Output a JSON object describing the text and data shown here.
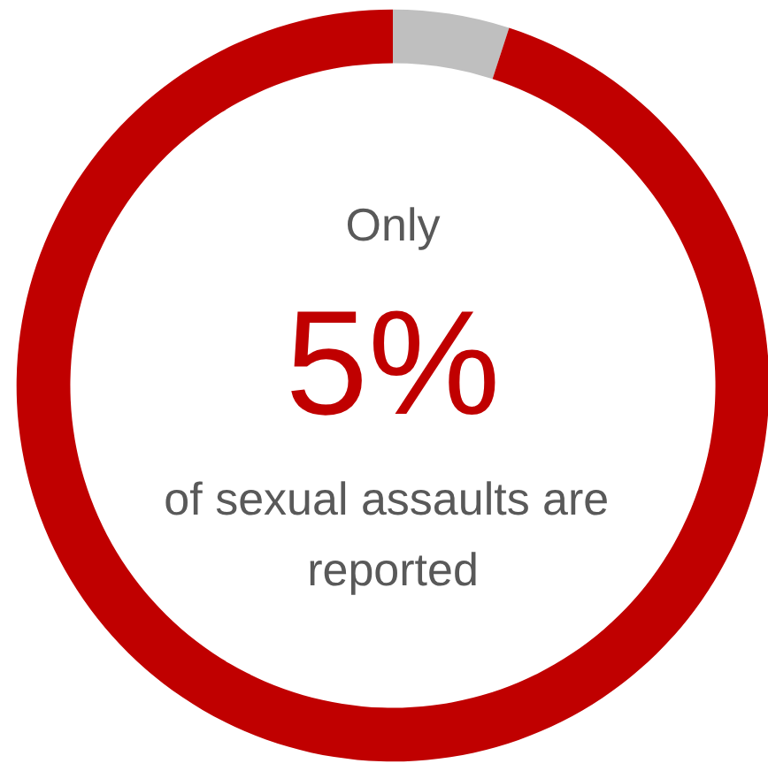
{
  "chart_data": {
    "type": "donut",
    "categories": [
      null,
      null
    ],
    "values": [
      5,
      95
    ],
    "colors": [
      "#bfbfbf",
      "#c00000"
    ],
    "annotations": [
      "Only",
      "5%",
      "of sexual assaults are reported"
    ]
  }
}
